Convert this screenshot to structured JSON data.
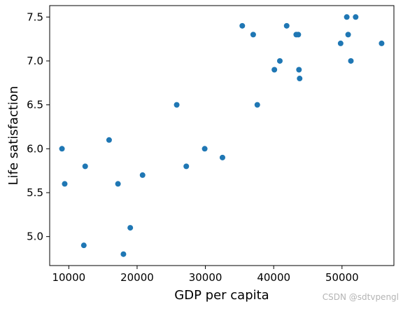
{
  "watermark": "CSDN @sdtvpengl",
  "chart_data": {
    "type": "scatter",
    "title": "",
    "xlabel": "GDP per capita",
    "ylabel": "Life satisfaction",
    "xlim": [
      7200,
      57600
    ],
    "ylim": [
      4.67,
      7.63
    ],
    "xticks": [
      10000,
      20000,
      30000,
      40000,
      50000
    ],
    "xtick_labels": [
      "10000",
      "20000",
      "30000",
      "40000",
      "50000"
    ],
    "yticks": [
      5.0,
      5.5,
      6.0,
      6.5,
      7.0,
      7.5
    ],
    "ytick_labels": [
      "5.0",
      "5.5",
      "6.0",
      "6.5",
      "7.0",
      "7.5"
    ],
    "grid": false,
    "marker_color": "#1f77b4",
    "points": [
      {
        "x": 9000,
        "y": 6.0
      },
      {
        "x": 9400,
        "y": 5.6
      },
      {
        "x": 12200,
        "y": 4.9
      },
      {
        "x": 12400,
        "y": 5.8
      },
      {
        "x": 15900,
        "y": 6.1
      },
      {
        "x": 17200,
        "y": 5.6
      },
      {
        "x": 18000,
        "y": 4.8
      },
      {
        "x": 19000,
        "y": 5.1
      },
      {
        "x": 20800,
        "y": 5.7
      },
      {
        "x": 25800,
        "y": 6.5
      },
      {
        "x": 27200,
        "y": 5.8
      },
      {
        "x": 29900,
        "y": 6.0
      },
      {
        "x": 32500,
        "y": 5.9
      },
      {
        "x": 35400,
        "y": 7.4
      },
      {
        "x": 37000,
        "y": 7.3
      },
      {
        "x": 37600,
        "y": 6.5
      },
      {
        "x": 40100,
        "y": 6.9
      },
      {
        "x": 40900,
        "y": 7.0
      },
      {
        "x": 41900,
        "y": 7.4
      },
      {
        "x": 43300,
        "y": 7.3
      },
      {
        "x": 43600,
        "y": 7.3
      },
      {
        "x": 43700,
        "y": 6.9
      },
      {
        "x": 43800,
        "y": 6.8
      },
      {
        "x": 49800,
        "y": 7.2
      },
      {
        "x": 50700,
        "y": 7.5
      },
      {
        "x": 50900,
        "y": 7.3
      },
      {
        "x": 51300,
        "y": 7.0
      },
      {
        "x": 52000,
        "y": 7.5
      },
      {
        "x": 55800,
        "y": 7.2
      }
    ]
  }
}
